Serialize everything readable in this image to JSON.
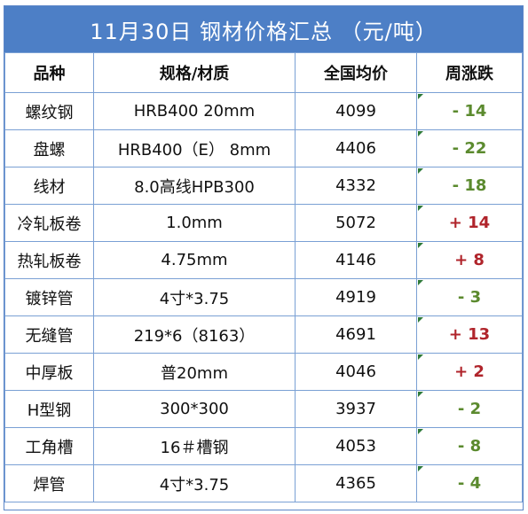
{
  "title": "11月30日 钢材价格汇总 （元/吨）",
  "headers": {
    "variety": "品种",
    "spec": "规格/材质",
    "price": "全国均价",
    "change": "周涨跌"
  },
  "rows": [
    {
      "variety": "螺纹钢",
      "spec": "HRB400 20mm",
      "price": "4099",
      "change": "- 14",
      "direction": "down"
    },
    {
      "variety": "盘螺",
      "spec": "HRB400（E） 8mm",
      "price": "4406",
      "change": "- 22",
      "direction": "down"
    },
    {
      "variety": "线材",
      "spec": "8.0高线HPB300",
      "price": "4332",
      "change": "- 18",
      "direction": "down"
    },
    {
      "variety": "冷轧板卷",
      "spec": "1.0mm",
      "price": "5072",
      "change": "+ 14",
      "direction": "up"
    },
    {
      "variety": "热轧板卷",
      "spec": "4.75mm",
      "price": "4146",
      "change": "+ 8",
      "direction": "up"
    },
    {
      "variety": "镀锌管",
      "spec": "4寸*3.75",
      "price": "4919",
      "change": "- 3",
      "direction": "down"
    },
    {
      "variety": "无缝管",
      "spec": "219*6（8163）",
      "price": "4691",
      "change": "+ 13",
      "direction": "up"
    },
    {
      "variety": "中厚板",
      "spec": "普20mm",
      "price": "4046",
      "change": "+ 2",
      "direction": "up"
    },
    {
      "variety": "H型钢",
      "spec": "300*300",
      "price": "3937",
      "change": "- 2",
      "direction": "down"
    },
    {
      "variety": "工角槽",
      "spec": "16＃槽钢",
      "price": "4053",
      "change": "- 8",
      "direction": "down"
    },
    {
      "variety": "焊管",
      "spec": "4寸*3.75",
      "price": "4365",
      "change": "- 4",
      "direction": "down"
    }
  ],
  "colors": {
    "header_bar": "#4d7fc6",
    "grid": "#7aa0d4",
    "down": "#5b8a2e",
    "up": "#b0242b"
  }
}
